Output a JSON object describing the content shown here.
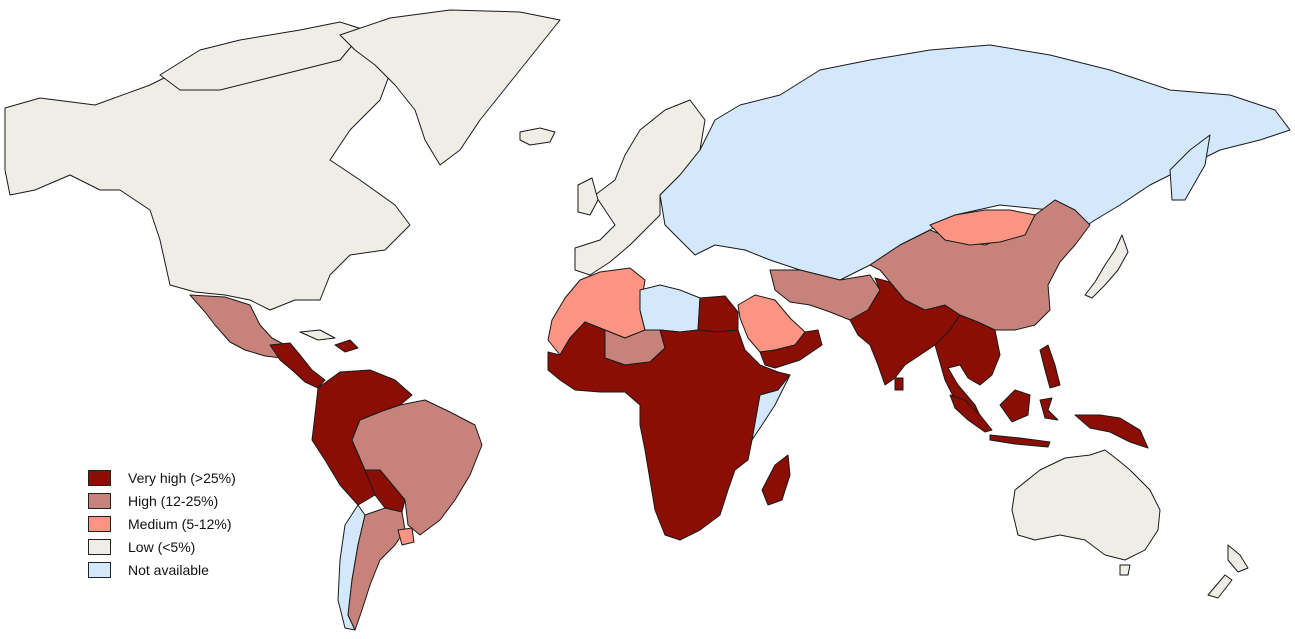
{
  "colors": {
    "very_high": "#8b0e04",
    "high": "#c7837b",
    "medium": "#fb9483",
    "low": "#efede6",
    "not_available": "#d4e8fb",
    "border": "#1a1a1a",
    "ocean": "#ffffff"
  },
  "legend": {
    "items": [
      {
        "key": "very_high",
        "label": "Very high (>25%)",
        "color": "#8b0e04"
      },
      {
        "key": "high",
        "label": "High (12-25%)",
        "color": "#c7837b"
      },
      {
        "key": "medium",
        "label": "Medium (5-12%)",
        "color": "#fb9483"
      },
      {
        "key": "low",
        "label": "Low (<5%)",
        "color": "#efede6"
      },
      {
        "key": "not_available",
        "label": "Not available",
        "color": "#d4e8fb"
      }
    ]
  },
  "regions": [
    {
      "name": "canada-usa",
      "category": "low"
    },
    {
      "name": "greenland",
      "category": "low"
    },
    {
      "name": "mexico",
      "category": "high"
    },
    {
      "name": "central-america",
      "category": "very_high"
    },
    {
      "name": "caribbean",
      "category": "very_high"
    },
    {
      "name": "northern-andes",
      "category": "very_high"
    },
    {
      "name": "brazil",
      "category": "high"
    },
    {
      "name": "bolivia-paraguay",
      "category": "very_high"
    },
    {
      "name": "argentina",
      "category": "high"
    },
    {
      "name": "chile",
      "category": "not_available"
    },
    {
      "name": "uruguay",
      "category": "medium"
    },
    {
      "name": "western-europe",
      "category": "low"
    },
    {
      "name": "eastern-europe-russia",
      "category": "not_available"
    },
    {
      "name": "north-africa-west",
      "category": "medium"
    },
    {
      "name": "libya",
      "category": "not_available"
    },
    {
      "name": "egypt",
      "category": "very_high"
    },
    {
      "name": "sub-saharan-africa",
      "category": "very_high"
    },
    {
      "name": "sahel",
      "category": "high"
    },
    {
      "name": "madagascar",
      "category": "very_high"
    },
    {
      "name": "saudi-arabia",
      "category": "medium"
    },
    {
      "name": "yemen",
      "category": "very_high"
    },
    {
      "name": "iran-pakistan",
      "category": "high"
    },
    {
      "name": "south-asia",
      "category": "very_high"
    },
    {
      "name": "southeast-asia",
      "category": "very_high"
    },
    {
      "name": "indonesia-png",
      "category": "very_high"
    },
    {
      "name": "china",
      "category": "high"
    },
    {
      "name": "mongolia",
      "category": "medium"
    },
    {
      "name": "japan",
      "category": "low"
    },
    {
      "name": "australia",
      "category": "low"
    },
    {
      "name": "new-zealand",
      "category": "low"
    }
  ]
}
